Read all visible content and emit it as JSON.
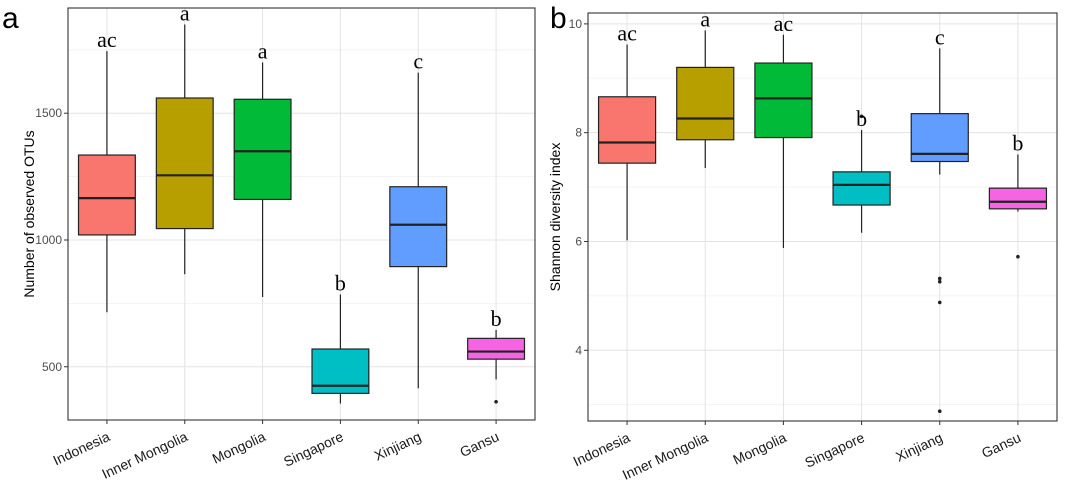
{
  "chart_data": [
    {
      "type": "box",
      "panel_label": "a",
      "title": "",
      "xlabel": "",
      "ylabel": "Number of observed OTUs",
      "ylim": [
        290,
        1915
      ],
      "yticks": [
        500,
        1000,
        1500
      ],
      "grid": true,
      "legend": "none",
      "categories": [
        "Indonesia",
        "Inner Mongolia",
        "Mongolia",
        "Singapore",
        "Xinjiang",
        "Gansu"
      ],
      "boxes": [
        {
          "category": "Indonesia",
          "whisker_low": 715,
          "q1": 1020,
          "median": 1165,
          "q3": 1335,
          "whisker_high": 1745,
          "outliers": [],
          "color": "#F8766D",
          "letter": "ac"
        },
        {
          "category": "Inner Mongolia",
          "whisker_low": 865,
          "q1": 1045,
          "median": 1255,
          "q3": 1560,
          "whisker_high": 1850,
          "outliers": [],
          "color": "#B79F00",
          "letter": "a"
        },
        {
          "category": "Mongolia",
          "whisker_low": 775,
          "q1": 1160,
          "median": 1350,
          "q3": 1555,
          "whisker_high": 1700,
          "outliers": [],
          "color": "#00BA38",
          "letter": "a"
        },
        {
          "category": "Singapore",
          "whisker_low": 355,
          "q1": 395,
          "median": 425,
          "q3": 570,
          "whisker_high": 785,
          "outliers": [],
          "color": "#00BFC4",
          "letter": "b"
        },
        {
          "category": "Xinjiang",
          "whisker_low": 415,
          "q1": 895,
          "median": 1060,
          "q3": 1210,
          "whisker_high": 1660,
          "outliers": [],
          "color": "#619CFF",
          "letter": "c"
        },
        {
          "category": "Gansu",
          "whisker_low": 450,
          "q1": 530,
          "median": 560,
          "q3": 612,
          "whisker_high": 645,
          "outliers": [
            362
          ],
          "color": "#F564E3",
          "letter": "b"
        }
      ]
    },
    {
      "type": "box",
      "panel_label": "b",
      "title": "",
      "xlabel": "",
      "ylabel": "Shannon diversity index",
      "ylim": [
        2.7,
        10.2
      ],
      "yticks": [
        4,
        6,
        8,
        10
      ],
      "grid": true,
      "legend": "none",
      "categories": [
        "Indonesia",
        "Inner Mongolia",
        "Mongolia",
        "Singapore",
        "Xinjiang",
        "Gansu"
      ],
      "boxes": [
        {
          "category": "Indonesia",
          "whisker_low": 6.02,
          "q1": 7.44,
          "median": 7.82,
          "q3": 8.66,
          "whisker_high": 9.62,
          "outliers": [],
          "color": "#F8766D",
          "letter": "ac"
        },
        {
          "category": "Inner Mongolia",
          "whisker_low": 7.35,
          "q1": 7.87,
          "median": 8.26,
          "q3": 9.2,
          "whisker_high": 9.88,
          "outliers": [],
          "color": "#B79F00",
          "letter": "a"
        },
        {
          "category": "Mongolia",
          "whisker_low": 5.88,
          "q1": 7.91,
          "median": 8.63,
          "q3": 9.28,
          "whisker_high": 9.8,
          "outliers": [],
          "color": "#00BA38",
          "letter": "ac"
        },
        {
          "category": "Singapore",
          "whisker_low": 6.16,
          "q1": 6.67,
          "median": 7.04,
          "q3": 7.28,
          "whisker_high": 8.05,
          "outliers": [
            8.3
          ],
          "color": "#00BFC4",
          "letter": "b"
        },
        {
          "category": "Xinjiang",
          "whisker_low": 7.23,
          "q1": 7.47,
          "median": 7.61,
          "q3": 8.35,
          "whisker_high": 9.55,
          "outliers": [
            5.32,
            5.26,
            4.88,
            2.88
          ],
          "color": "#619CFF",
          "letter": "c"
        },
        {
          "category": "Gansu",
          "whisker_low": 6.55,
          "q1": 6.6,
          "median": 6.73,
          "q3": 6.98,
          "whisker_high": 7.6,
          "outliers": [
            5.72
          ],
          "color": "#F564E3",
          "letter": "b"
        }
      ]
    }
  ]
}
